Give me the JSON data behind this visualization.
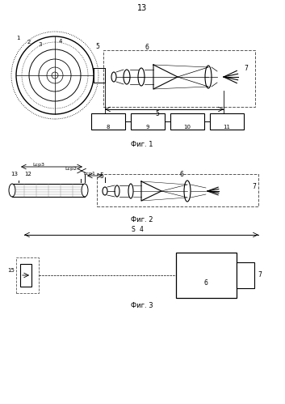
{
  "page_number": "13",
  "fig1_caption": "Фиг. 1",
  "fig2_caption": "Фиг. 2",
  "fig3_caption": "Фиг. 3",
  "bg_color": "#ffffff",
  "line_color": "#000000"
}
